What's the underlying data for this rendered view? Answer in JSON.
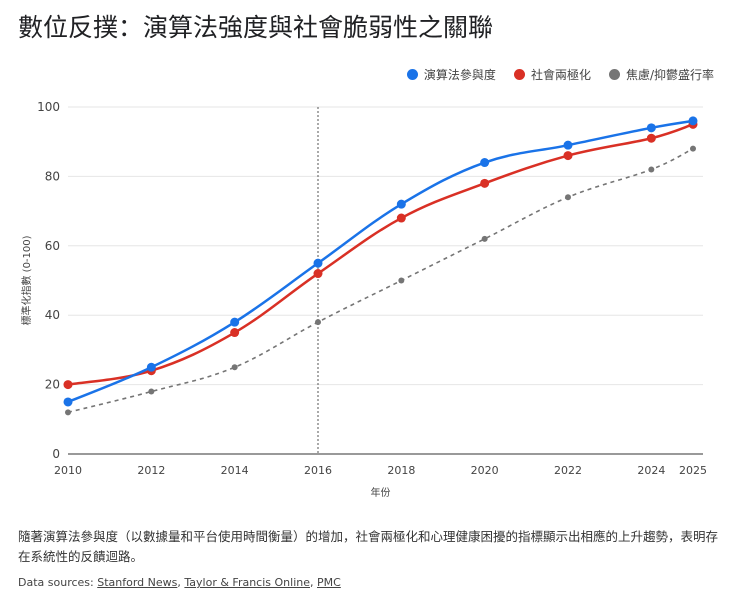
{
  "title": "數位反撲：演算法強度與社會脆弱性之關聯",
  "description": "隨著演算法參與度（以數據量和平台使用時間衡量）的增加，社會兩極化和心理健康困擾的指標顯示出相應的上升趨勢，表明存在系統性的反饋迴路。",
  "sources": {
    "prefix": "Data sources:",
    "links": [
      "Stanford News",
      "Taylor & Francis Online",
      "PMC"
    ]
  },
  "chart_data": {
    "type": "line",
    "xlabel": "年份",
    "ylabel": "標準化指數 (0-100)",
    "x": [
      2010,
      2012,
      2014,
      2016,
      2018,
      2020,
      2022,
      2024,
      2025
    ],
    "xticks": [
      "2010",
      "2012",
      "2014",
      "2016",
      "2018",
      "2020",
      "2022",
      "2024",
      "2025"
    ],
    "yticks": [
      "0",
      "20",
      "40",
      "60",
      "80",
      "100"
    ],
    "ylim": [
      0,
      100
    ],
    "xlim": [
      2010,
      2025
    ],
    "grid": true,
    "legend": "top-right",
    "annotation_vline": 2016,
    "series": [
      {
        "name": "演算法參與度",
        "color": "#1a73e8",
        "style": "solid",
        "values": [
          15,
          25,
          38,
          55,
          72,
          84,
          89,
          94,
          96
        ]
      },
      {
        "name": "社會兩極化",
        "color": "#d93025",
        "style": "solid",
        "values": [
          20,
          24,
          35,
          52,
          68,
          78,
          86,
          91,
          95
        ]
      },
      {
        "name": "焦慮/抑鬱盛行率",
        "color": "#757575",
        "style": "dashed",
        "values": [
          12,
          18,
          25,
          38,
          50,
          62,
          74,
          82,
          88
        ]
      }
    ]
  }
}
